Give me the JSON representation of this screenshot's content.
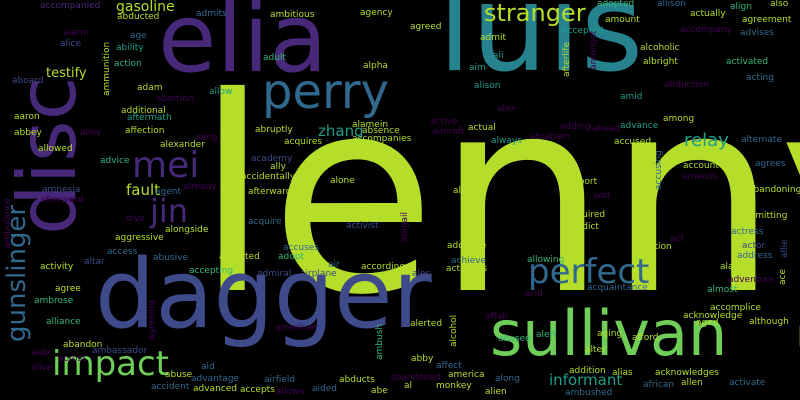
{
  "palette": {
    "background": "#000000",
    "lime": "#b5de2b",
    "green": "#6ece58",
    "teal": "#26828e",
    "cyan": "#1f9e89",
    "blue": "#3e4a89",
    "indigo": "#31688e",
    "purple": "#482878",
    "violet": "#440154",
    "mint": "#35b779"
  },
  "words": [
    "lenny",
    "luis",
    "elia",
    "disc",
    "dagger",
    "sullivan",
    "perry",
    "perfect",
    "impact",
    "gunslinger",
    "mei",
    "jin",
    "stranger",
    "gasoline",
    "relay",
    "zhang",
    "fault",
    "informant",
    "testify",
    "accompanied",
    "abducted",
    "admits",
    "ambitious",
    "agency",
    "adopted",
    "allison",
    "align",
    "also",
    "alarm",
    "age",
    "ability",
    "action",
    "ammunition",
    "alice",
    "agreed",
    "admit",
    "accepted",
    "amount",
    "actually",
    "agreement",
    "advises",
    "adult",
    "alpha",
    "ali",
    "aim",
    "afterlife",
    "amongst",
    "alcoholic",
    "albright",
    "accompany",
    "activated",
    "acting",
    "aboard",
    "adam",
    "allow",
    "abortion",
    "alison",
    "abduction",
    "aaron",
    "additional",
    "aftermath",
    "alamein",
    "absence",
    "active",
    "actual",
    "always",
    "adding",
    "ahead",
    "advance",
    "amid",
    "among",
    "abbey",
    "alley",
    "affection",
    "aang",
    "abruptly",
    "accompanies",
    "aircraft",
    "abraham",
    "alex",
    "allowed",
    "alexander",
    "academy",
    "acquires",
    "accused",
    "abu",
    "alternate",
    "advice",
    "agent",
    "already",
    "ally",
    "accidentally",
    "afterwards",
    "alone",
    "alfred",
    "airport",
    "account",
    "agrees",
    "ambulance",
    "amnesia",
    "afterward",
    "dive",
    "alongside",
    "acquire",
    "activist",
    "abigail",
    "ago",
    "add",
    "acquired",
    "addict",
    "amends",
    "accusing",
    "abandoning",
    "admitting",
    "aggressive",
    "accuses",
    "adoptive",
    "ambition",
    "act",
    "actress",
    "address",
    "alan",
    "activity",
    "altar",
    "access",
    "abusive",
    "admitted",
    "adopt",
    "achieve",
    "allowing",
    "actor",
    "accepting",
    "admiral",
    "airplane",
    "air",
    "according",
    "alec",
    "activates",
    "almost",
    "agree",
    "ambrose",
    "acid",
    "adventure",
    "ace",
    "allie",
    "acquaintance",
    "accomplice",
    "alliance",
    "agreeing",
    "american",
    "ambush",
    "alerted",
    "alcohol",
    "abused",
    "alert",
    "aging",
    "afford",
    "acknowledge",
    "aged",
    "although",
    "affair",
    "abandon",
    "ambassador",
    "aide",
    "alive",
    "across",
    "accident",
    "abuse",
    "advantage",
    "aid",
    "airfield",
    "abducts",
    "abandoned",
    "abby",
    "affect",
    "america",
    "addition",
    "alter",
    "alias",
    "acknowledges",
    "advanced",
    "accepts",
    "allows",
    "aided",
    "al",
    "abe",
    "monkey",
    "along",
    "alien",
    "african",
    "allen",
    "activate",
    "ambushed"
  ]
}
